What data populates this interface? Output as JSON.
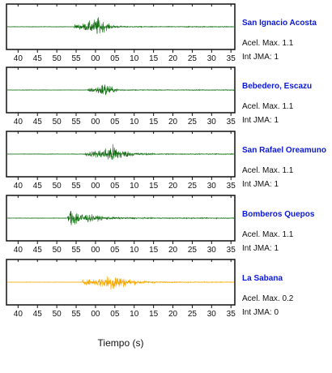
{
  "chart_data": {
    "type": "line",
    "xlabel": "Tiempo (s)",
    "tick_labels": [
      "40",
      "45",
      "50",
      "55",
      "00",
      "05",
      "10",
      "15",
      "20",
      "25",
      "30",
      "35"
    ],
    "xlim": [
      37,
      96
    ],
    "tick_positions": [
      40,
      45,
      50,
      55,
      60,
      65,
      70,
      75,
      80,
      85,
      90,
      95
    ],
    "colors": {
      "green": "#0a6a0a",
      "orange": "#f5a800",
      "station_text": "#0b18d6"
    },
    "series": [
      {
        "name": "San Ignacio Acosta",
        "color": "#0a6a0a",
        "accel_label": "Acel. Max. 1.1",
        "jma_label": "Int JMA: 1",
        "onset": 54.5,
        "peak_time": 60.8,
        "amplitude": 1.0,
        "decay": 0.55
      },
      {
        "name": "Bebedero, Escazu",
        "color": "#0a6a0a",
        "accel_label": "Acel. Max. 1.1",
        "jma_label": "Int JMA: 1",
        "onset": 58.0,
        "peak_time": 62.6,
        "amplitude": 0.85,
        "decay": 0.7
      },
      {
        "name": "San Rafael Oreamuno",
        "color": "#0a6a0a",
        "accel_label": "Acel. Max. 1.1",
        "jma_label": "Int JMA: 1",
        "onset": 57.3,
        "peak_time": 64.5,
        "amplitude": 1.0,
        "decay": 0.35
      },
      {
        "name": "Bomberos Quepos",
        "color": "#0a6a0a",
        "accel_label": "Acel. Max. 1.1",
        "jma_label": "Int JMA: 1",
        "onset": 52.8,
        "peak_time": 53.5,
        "amplitude": 1.0,
        "decay": 0.22
      },
      {
        "name": "La Sabana",
        "color": "#f5a800",
        "accel_label": "Acel. Max. 0.2",
        "jma_label": "Int JMA: 0",
        "onset": 56.5,
        "peak_time": 64.5,
        "amplitude": 1.0,
        "decay": 0.28
      }
    ]
  }
}
